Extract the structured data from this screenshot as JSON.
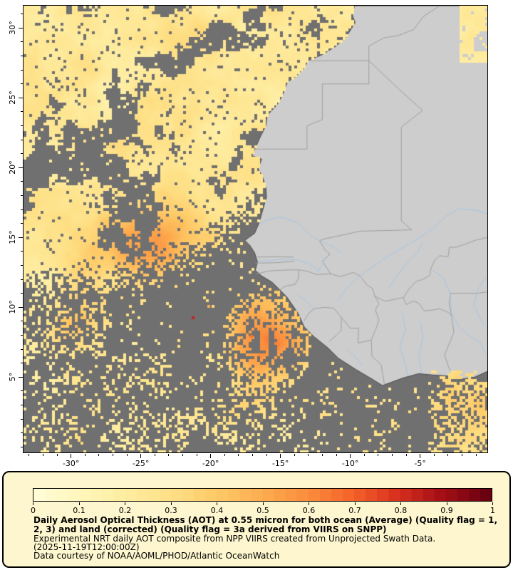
{
  "map": {
    "lat_ticks": [
      {
        "lat": 30,
        "label": "30°"
      },
      {
        "lat": 25,
        "label": "25°"
      },
      {
        "lat": 20,
        "label": "20°"
      },
      {
        "lat": 15,
        "label": "15°"
      },
      {
        "lat": 10,
        "label": "10°"
      },
      {
        "lat": 5,
        "label": "5°"
      }
    ],
    "lon_ticks": [
      {
        "lon": -30,
        "label": "-30°"
      },
      {
        "lon": -25,
        "label": "-25°"
      },
      {
        "lon": -20,
        "label": "-20°"
      },
      {
        "lon": -15,
        "label": "-15°"
      },
      {
        "lon": -10,
        "label": "-10°"
      },
      {
        "lon": -5,
        "label": "-5°"
      }
    ],
    "colors": {
      "no_data_ocean": "#707070",
      "land": "#CDCDCD",
      "coastline": "#4B4B4B",
      "country_border": "#9A9A9A",
      "river": "#A6C6E6",
      "frame": "#000000"
    }
  },
  "colorbar": {
    "min": 0,
    "max": 1,
    "tick_labels": [
      "0",
      "0.1",
      "0.2",
      "0.3",
      "0.4",
      "0.5",
      "0.6",
      "0.7",
      "0.8",
      "0.9",
      "1"
    ],
    "stops": [
      "#FFFCD6",
      "#FFF6B8",
      "#FEEC9F",
      "#FEDF84",
      "#FEC966",
      "#FDAC4F",
      "#FB8D3D",
      "#F4632A",
      "#D8301F",
      "#A50F15",
      "#6B0010"
    ]
  },
  "legend": {
    "background": "#FDF6CF",
    "title_line1": "Daily Aerosol Optical Thickness (AOT) at 0.55 micron for both ocean (Average) (Quality flag = 1,",
    "title_line2": "2, 3) and land (corrected) (Quality flag = 3a derived from VIIRS on SNPP)",
    "subtitle": "Experimental NRT daily AOT composite from NPP VIIRS created from Unprojected Swath Data.",
    "timestamp": "(2025-11-19T12:00:00Z)",
    "credit": "Data courtesy of NOAA/AOML/PHOD/Atlantic OceanWatch"
  },
  "chart_data": {
    "type": "heatmap",
    "variable": "Daily Aerosol Optical Thickness (AOT) at 0.55 micron",
    "value_range": [
      0,
      1
    ],
    "colorbar_ticks": [
      0,
      0.1,
      0.2,
      0.3,
      0.4,
      0.5,
      0.6,
      0.7,
      0.8,
      0.9,
      1
    ],
    "x_axis_ticks_deg_lon": [
      -30,
      -25,
      -20,
      -15,
      -10,
      -5
    ],
    "y_axis_ticks_deg_lat": [
      30,
      25,
      20,
      15,
      10,
      5
    ],
    "legend_position": "bottom"
  }
}
